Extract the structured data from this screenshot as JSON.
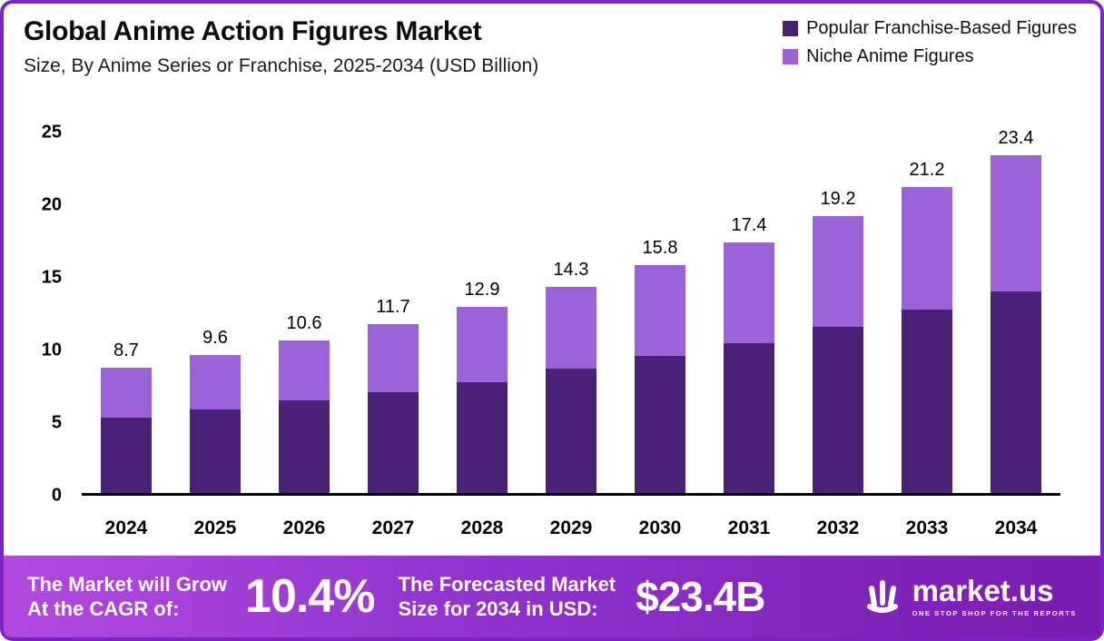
{
  "header": {
    "title": "Global Anime Action Figures Market",
    "subtitle": "Size, By Anime Series or Franchise, 2025-2034 (USD Billion)"
  },
  "legend": [
    {
      "label": "Popular Franchise-Based Figures",
      "color": "#4b2178"
    },
    {
      "label": "Niche Anime Figures",
      "color": "#9d62d9"
    }
  ],
  "chart_data": {
    "type": "bar",
    "stacked": true,
    "title": "Global Anime Action Figures Market",
    "categories": [
      "2024",
      "2025",
      "2026",
      "2027",
      "2028",
      "2029",
      "2030",
      "2031",
      "2032",
      "2033",
      "2034"
    ],
    "series": [
      {
        "name": "Popular Franchise-Based Figures",
        "color": "#4b2178",
        "values": [
          5.2,
          5.8,
          6.4,
          7.0,
          7.7,
          8.6,
          9.5,
          10.4,
          11.5,
          12.7,
          14.0
        ]
      },
      {
        "name": "Niche Anime Figures",
        "color": "#9d62d9",
        "values": [
          3.5,
          3.8,
          4.2,
          4.7,
          5.2,
          5.7,
          6.3,
          7.0,
          7.7,
          8.5,
          9.4
        ]
      }
    ],
    "totals": [
      8.7,
      9.6,
      10.6,
      11.7,
      12.9,
      14.3,
      15.8,
      17.4,
      19.2,
      21.2,
      23.4
    ],
    "ylim": [
      0,
      25
    ],
    "yticks": [
      0,
      5,
      10,
      15,
      20,
      25
    ],
    "xlabel": "",
    "ylabel": "",
    "grid": false,
    "legend_position": "top-right"
  },
  "footer": {
    "cagr_label_line1": "The Market will Grow",
    "cagr_label_line2": "At the CAGR of:",
    "cagr_value": "10.4%",
    "forecast_label_line1": "The Forecasted Market",
    "forecast_label_line2": "Size for 2034 in USD:",
    "forecast_value": "$23.4B",
    "brand": "market.us",
    "brand_tagline": "ONE STOP SHOP FOR THE REPORTS"
  }
}
